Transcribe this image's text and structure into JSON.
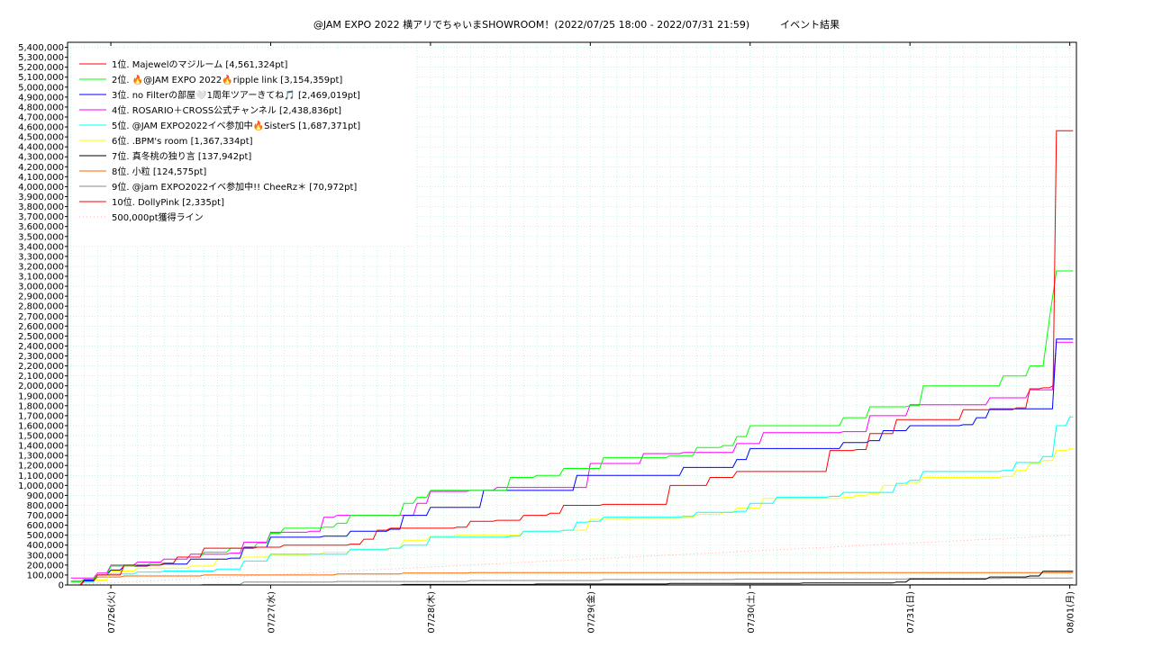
{
  "title_left": "@JAM EXPO 2022 横アリでちゃいまSHOWROOM！(2022/07/25 18:00 - 2022/07/31 21:59)",
  "title_right": "イベント結果",
  "chart_data": {
    "type": "line",
    "title": "@JAM EXPO 2022 横アリでちゃいまSHOWROOM！(2022/07/25 18:00 - 2022/07/31 21:59)　イベント結果",
    "x_unit": "hours since 2022/07/25 18:00",
    "xlim": [
      -0.5,
      151
    ],
    "ylim": [
      0,
      5450000
    ],
    "ytick_step": 100000,
    "x_ticks": [
      {
        "x": 6,
        "label": "07/26(火)"
      },
      {
        "x": 30,
        "label": "07/27(水)"
      },
      {
        "x": 54,
        "label": "07/28(木)"
      },
      {
        "x": 78,
        "label": "07/29(金)"
      },
      {
        "x": 102,
        "label": "07/30(土)"
      },
      {
        "x": 126,
        "label": "07/31(日)"
      },
      {
        "x": 150,
        "label": "08/01(月)"
      }
    ],
    "grid": true,
    "legend_position": "top-left",
    "series": [
      {
        "name": "1位. Majewelのマジルーム [4,561,324pt]",
        "color": "#ff0000",
        "points": [
          [
            0,
            0
          ],
          [
            2,
            40000
          ],
          [
            4,
            100000
          ],
          [
            8,
            200000
          ],
          [
            12,
            200000
          ],
          [
            14,
            220000
          ],
          [
            16,
            280000
          ],
          [
            20,
            370000
          ],
          [
            28,
            380000
          ],
          [
            32,
            400000
          ],
          [
            42,
            410000
          ],
          [
            44,
            460000
          ],
          [
            46,
            550000
          ],
          [
            48,
            570000
          ],
          [
            52,
            570000
          ],
          [
            58,
            580000
          ],
          [
            60,
            640000
          ],
          [
            64,
            650000
          ],
          [
            68,
            700000
          ],
          [
            72,
            720000
          ],
          [
            74,
            800000
          ],
          [
            80,
            810000
          ],
          [
            86,
            810000
          ],
          [
            90,
            1000000
          ],
          [
            94,
            1000000
          ],
          [
            96,
            1080000
          ],
          [
            100,
            1140000
          ],
          [
            106,
            1140000
          ],
          [
            112,
            1140000
          ],
          [
            114,
            1350000
          ],
          [
            118,
            1360000
          ],
          [
            120,
            1520000
          ],
          [
            124,
            1660000
          ],
          [
            130,
            1660000
          ],
          [
            134,
            1760000
          ],
          [
            142,
            1780000
          ],
          [
            144,
            1970000
          ],
          [
            146,
            1980000
          ],
          [
            147.5,
            2000000
          ],
          [
            148,
            4561324
          ],
          [
            150.5,
            4561324
          ]
        ]
      },
      {
        "name": "2位. 🔥@JAM EXPO 2022🔥ripple link [3,154,359pt]",
        "color": "#00ff00",
        "points": [
          [
            0,
            30000
          ],
          [
            2,
            60000
          ],
          [
            4,
            100000
          ],
          [
            6,
            190000
          ],
          [
            10,
            200000
          ],
          [
            12,
            220000
          ],
          [
            16,
            280000
          ],
          [
            20,
            330000
          ],
          [
            24,
            370000
          ],
          [
            28,
            420000
          ],
          [
            30,
            520000
          ],
          [
            32,
            570000
          ],
          [
            38,
            580000
          ],
          [
            40,
            620000
          ],
          [
            42,
            700000
          ],
          [
            48,
            700000
          ],
          [
            50,
            820000
          ],
          [
            52,
            880000
          ],
          [
            54,
            950000
          ],
          [
            60,
            950000
          ],
          [
            66,
            1080000
          ],
          [
            70,
            1100000
          ],
          [
            74,
            1170000
          ],
          [
            80,
            1280000
          ],
          [
            90,
            1300000
          ],
          [
            94,
            1380000
          ],
          [
            98,
            1400000
          ],
          [
            100,
            1490000
          ],
          [
            102,
            1600000
          ],
          [
            112,
            1600000
          ],
          [
            116,
            1680000
          ],
          [
            120,
            1790000
          ],
          [
            126,
            1800000
          ],
          [
            128,
            2000000
          ],
          [
            138,
            2000000
          ],
          [
            140,
            2100000
          ],
          [
            144,
            2200000
          ],
          [
            146,
            2200000
          ],
          [
            147,
            2700000
          ],
          [
            148,
            3154359
          ],
          [
            150.5,
            3154359
          ]
        ]
      },
      {
        "name": "3位. no Filterの部屋🤍1周年ツアーきてね🎵 [2,469,019pt]",
        "color": "#0000ff",
        "points": [
          [
            0,
            0
          ],
          [
            2,
            50000
          ],
          [
            4,
            100000
          ],
          [
            6,
            150000
          ],
          [
            8,
            190000
          ],
          [
            12,
            200000
          ],
          [
            14,
            210000
          ],
          [
            18,
            260000
          ],
          [
            24,
            270000
          ],
          [
            26,
            380000
          ],
          [
            28,
            380000
          ],
          [
            30,
            480000
          ],
          [
            38,
            490000
          ],
          [
            42,
            540000
          ],
          [
            48,
            560000
          ],
          [
            50,
            700000
          ],
          [
            54,
            780000
          ],
          [
            58,
            780000
          ],
          [
            62,
            950000
          ],
          [
            72,
            950000
          ],
          [
            76,
            1100000
          ],
          [
            90,
            1100000
          ],
          [
            92,
            1180000
          ],
          [
            98,
            1180000
          ],
          [
            100,
            1260000
          ],
          [
            102,
            1370000
          ],
          [
            114,
            1370000
          ],
          [
            116,
            1430000
          ],
          [
            120,
            1450000
          ],
          [
            122,
            1550000
          ],
          [
            126,
            1600000
          ],
          [
            134,
            1610000
          ],
          [
            136,
            1680000
          ],
          [
            138,
            1770000
          ],
          [
            146,
            1770000
          ],
          [
            148,
            2469019
          ],
          [
            150.5,
            2469019
          ]
        ]
      },
      {
        "name": "4位. ROSARIO＋CROSS公式チャンネル [2,438,836pt]",
        "color": "#ff00ff",
        "points": [
          [
            0,
            70000
          ],
          [
            4,
            120000
          ],
          [
            6,
            200000
          ],
          [
            10,
            230000
          ],
          [
            14,
            260000
          ],
          [
            18,
            310000
          ],
          [
            24,
            320000
          ],
          [
            26,
            430000
          ],
          [
            28,
            430000
          ],
          [
            30,
            530000
          ],
          [
            36,
            540000
          ],
          [
            38,
            680000
          ],
          [
            40,
            700000
          ],
          [
            50,
            700000
          ],
          [
            52,
            820000
          ],
          [
            54,
            940000
          ],
          [
            60,
            950000
          ],
          [
            64,
            980000
          ],
          [
            74,
            980000
          ],
          [
            78,
            1220000
          ],
          [
            84,
            1220000
          ],
          [
            86,
            1320000
          ],
          [
            92,
            1330000
          ],
          [
            98,
            1330000
          ],
          [
            100,
            1420000
          ],
          [
            104,
            1530000
          ],
          [
            116,
            1540000
          ],
          [
            120,
            1700000
          ],
          [
            124,
            1700000
          ],
          [
            126,
            1810000
          ],
          [
            136,
            1810000
          ],
          [
            138,
            1880000
          ],
          [
            142,
            1880000
          ],
          [
            144,
            1960000
          ],
          [
            146,
            1960000
          ],
          [
            148,
            2438836
          ],
          [
            150.5,
            2438836
          ]
        ]
      },
      {
        "name": "5位. @JAM EXPO2022イベ参加中🔥SisterS [1,687,371pt]",
        "color": "#00ffff",
        "points": [
          [
            0,
            0
          ],
          [
            2,
            30000
          ],
          [
            4,
            100000
          ],
          [
            6,
            110000
          ],
          [
            10,
            130000
          ],
          [
            14,
            140000
          ],
          [
            22,
            160000
          ],
          [
            26,
            240000
          ],
          [
            30,
            310000
          ],
          [
            38,
            310000
          ],
          [
            42,
            360000
          ],
          [
            48,
            370000
          ],
          [
            50,
            400000
          ],
          [
            54,
            480000
          ],
          [
            66,
            490000
          ],
          [
            68,
            540000
          ],
          [
            74,
            550000
          ],
          [
            76,
            630000
          ],
          [
            78,
            640000
          ],
          [
            80,
            680000
          ],
          [
            92,
            690000
          ],
          [
            94,
            730000
          ],
          [
            100,
            740000
          ],
          [
            102,
            820000
          ],
          [
            106,
            880000
          ],
          [
            114,
            890000
          ],
          [
            116,
            930000
          ],
          [
            122,
            930000
          ],
          [
            124,
            1020000
          ],
          [
            126,
            1050000
          ],
          [
            128,
            1140000
          ],
          [
            140,
            1150000
          ],
          [
            142,
            1230000
          ],
          [
            146,
            1290000
          ],
          [
            148,
            1600000
          ],
          [
            150,
            1687371
          ],
          [
            150.5,
            1687371
          ]
        ]
      },
      {
        "name": "6位. .BPM's room [1,367,334pt]",
        "color": "#ffff00",
        "points": [
          [
            0,
            0
          ],
          [
            2,
            50000
          ],
          [
            6,
            140000
          ],
          [
            10,
            170000
          ],
          [
            18,
            190000
          ],
          [
            22,
            260000
          ],
          [
            26,
            280000
          ],
          [
            30,
            300000
          ],
          [
            36,
            310000
          ],
          [
            38,
            330000
          ],
          [
            42,
            350000
          ],
          [
            48,
            370000
          ],
          [
            50,
            450000
          ],
          [
            54,
            490000
          ],
          [
            58,
            500000
          ],
          [
            66,
            500000
          ],
          [
            68,
            540000
          ],
          [
            74,
            550000
          ],
          [
            78,
            660000
          ],
          [
            84,
            670000
          ],
          [
            92,
            680000
          ],
          [
            94,
            710000
          ],
          [
            98,
            730000
          ],
          [
            100,
            770000
          ],
          [
            104,
            870000
          ],
          [
            116,
            880000
          ],
          [
            118,
            900000
          ],
          [
            120,
            920000
          ],
          [
            122,
            1000000
          ],
          [
            126,
            1030000
          ],
          [
            128,
            1080000
          ],
          [
            140,
            1090000
          ],
          [
            142,
            1150000
          ],
          [
            144,
            1220000
          ],
          [
            146,
            1250000
          ],
          [
            148,
            1350000
          ],
          [
            150,
            1367334
          ],
          [
            150.5,
            1367334
          ]
        ]
      },
      {
        "name": "7位. 真冬桃の独り言 [137,942pt]",
        "color": "#000000",
        "points": [
          [
            0,
            0
          ],
          [
            50,
            5000
          ],
          [
            70,
            10000
          ],
          [
            90,
            15000
          ],
          [
            110,
            20000
          ],
          [
            124,
            30000
          ],
          [
            126,
            60000
          ],
          [
            132,
            60000
          ],
          [
            138,
            80000
          ],
          [
            144,
            90000
          ],
          [
            146,
            137942
          ],
          [
            150.5,
            137942
          ]
        ]
      },
      {
        "name": "8位. 小粒 [124,575pt]",
        "color": "#ff6600",
        "points": [
          [
            0,
            40000
          ],
          [
            4,
            80000
          ],
          [
            8,
            90000
          ],
          [
            20,
            100000
          ],
          [
            40,
            110000
          ],
          [
            50,
            120000
          ],
          [
            60,
            125000
          ],
          [
            80,
            124575
          ],
          [
            150.5,
            124575
          ]
        ]
      },
      {
        "name": "9位. @jam EXPO2022イベ参加中!! CheeRz＊ [70,972pt]",
        "color": "#888888",
        "points": [
          [
            0,
            0
          ],
          [
            20,
            5000
          ],
          [
            26,
            30000
          ],
          [
            40,
            35000
          ],
          [
            60,
            45000
          ],
          [
            80,
            55000
          ],
          [
            100,
            60000
          ],
          [
            126,
            65000
          ],
          [
            140,
            70000
          ],
          [
            150.5,
            70972
          ]
        ]
      },
      {
        "name": "10位. DollyPink [2,335pt]",
        "color": "#ff0000",
        "points": [
          [
            0,
            0
          ],
          [
            60,
            1000
          ],
          [
            100,
            2000
          ],
          [
            150.5,
            2335
          ]
        ]
      }
    ],
    "reference_line": {
      "name": "500,000pt獲得ライン",
      "color": "#ffb0b0",
      "y_end": 500000
    }
  }
}
